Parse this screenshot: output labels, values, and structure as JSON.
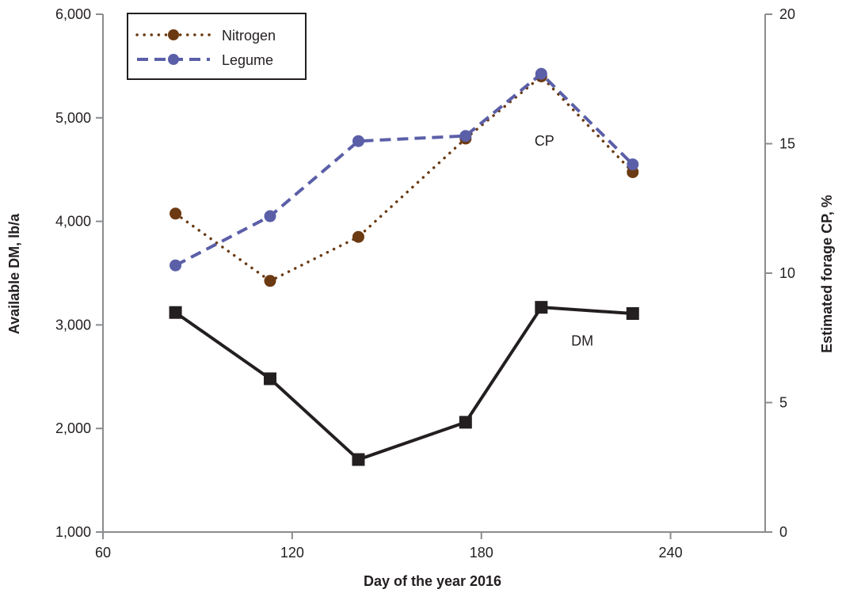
{
  "chart_data": {
    "type": "line",
    "xlabel": "Day of the year 2016",
    "ylabel": "Available DM, lb/a",
    "y2label": "Estimated forage CP, %",
    "xlim": [
      60,
      270
    ],
    "ylim": [
      1000,
      6000
    ],
    "y2lim": [
      0,
      20
    ],
    "xticks": [
      60,
      120,
      180,
      240
    ],
    "xtick_labels": [
      "60",
      "120",
      "180",
      "240"
    ],
    "yticks": [
      1000,
      2000,
      3000,
      4000,
      5000,
      6000
    ],
    "ytick_labels": [
      "1,000",
      "2,000",
      "3,000",
      "4,000",
      "5,000",
      "6,000"
    ],
    "y2ticks": [
      0,
      5,
      10,
      15,
      20
    ],
    "y2tick_labels": [
      "0",
      "5",
      "10",
      "15",
      "20"
    ],
    "grid": false,
    "legend_position": "top-left",
    "annotations": [
      {
        "text": "CP",
        "x": 200,
        "y": 4730,
        "axis": "left"
      },
      {
        "text": "DM",
        "x": 212,
        "y": 2800,
        "axis": "left"
      }
    ],
    "series": [
      {
        "name": "Nitrogen",
        "axis": "right",
        "style": "dotted",
        "marker": "circle",
        "color": "#6b3a12",
        "x": [
          83,
          113,
          141,
          175,
          199,
          228
        ],
        "y": [
          12.3,
          9.7,
          11.4,
          15.2,
          17.6,
          13.9
        ]
      },
      {
        "name": "Legume",
        "axis": "right",
        "style": "dashed",
        "marker": "circle",
        "color": "#5b5fa8",
        "x": [
          83,
          113,
          141,
          175,
          199,
          228
        ],
        "y": [
          10.3,
          12.2,
          15.1,
          15.3,
          17.7,
          14.2
        ]
      },
      {
        "name": "",
        "axis": "left",
        "style": "solid",
        "marker": "square",
        "color": "#231f20",
        "x": [
          83,
          113,
          141,
          175,
          199,
          228
        ],
        "y": [
          3120,
          2480,
          1700,
          2060,
          3170,
          3110
        ]
      }
    ]
  }
}
